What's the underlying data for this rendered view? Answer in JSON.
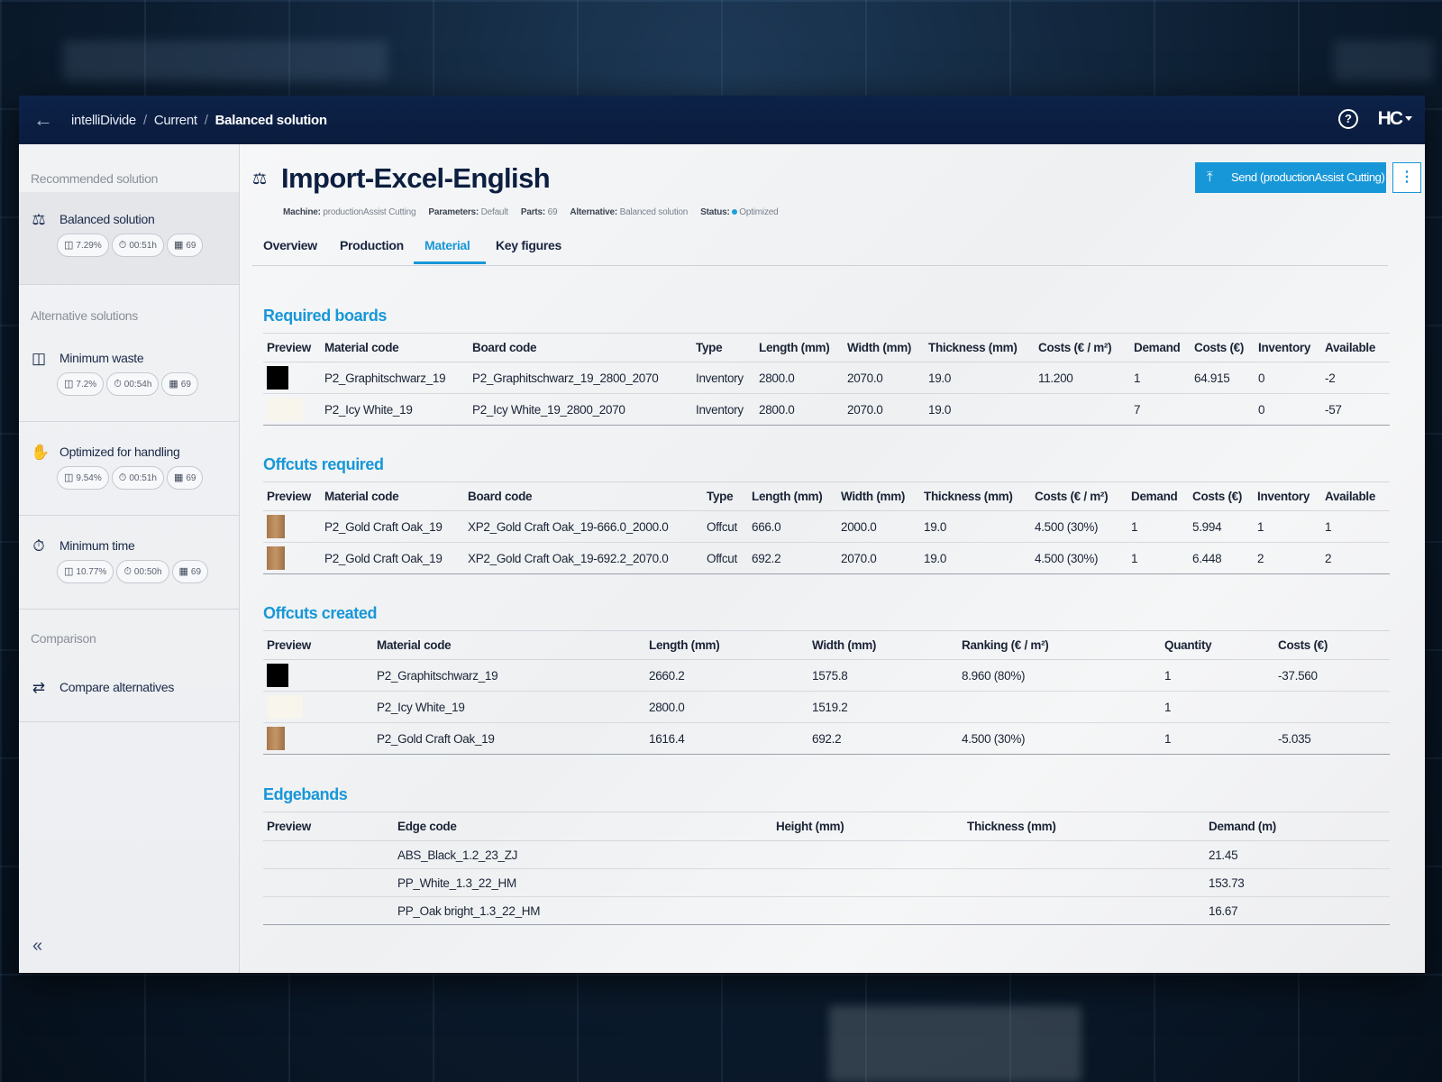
{
  "header": {
    "breadcrumb": [
      "intelliDivide",
      "Current",
      "Balanced solution"
    ],
    "logo_text": "HC"
  },
  "sidebar": {
    "recommended_title": "Recommended solution",
    "alternatives_title": "Alternative solutions",
    "comparison_title": "Comparison",
    "items": [
      {
        "label": "Balanced solution",
        "icon": "balance-scale-icon",
        "waste": "7.29%",
        "time": "00:51h",
        "parts": "69"
      },
      {
        "label": "Minimum waste",
        "icon": "waste-bin-icon",
        "waste": "7.2%",
        "time": "00:54h",
        "parts": "69"
      },
      {
        "label": "Optimized for handling",
        "icon": "hand-icon",
        "waste": "9.54%",
        "time": "00:51h",
        "parts": "69"
      },
      {
        "label": "Minimum time",
        "icon": "timer-icon",
        "waste": "10.77%",
        "time": "00:50h",
        "parts": "69"
      }
    ],
    "compare_label": "Compare alternatives"
  },
  "page": {
    "title": "Import-Excel-English",
    "meta": {
      "machine_label": "Machine:",
      "machine": "productionAssist Cutting",
      "parameters_label": "Parameters:",
      "parameters": "Default",
      "parts_label": "Parts:",
      "parts": "69",
      "alternative_label": "Alternative:",
      "alternative": "Balanced solution",
      "status_label": "Status:",
      "status": "Optimized"
    },
    "send_button": "Send (productionAssist Cutting)",
    "tabs": [
      "Overview",
      "Production",
      "Material",
      "Key figures"
    ],
    "active_tab": "Material"
  },
  "colors": {
    "accent": "#1897d8",
    "header": "#0d2248",
    "black_swatch": "#000000",
    "white_swatch": "#f7f5ec",
    "oak_swatch": "#a77a50"
  },
  "required_boards": {
    "title": "Required boards",
    "columns": [
      "Preview",
      "Material code",
      "Board code",
      "Type",
      "Length (mm)",
      "Width (mm)",
      "Thickness (mm)",
      "Costs (€ / m²)",
      "Demand",
      "Costs (€)",
      "Inventory",
      "Available"
    ],
    "rows": [
      [
        "P2_Graphitschwarz_19",
        "P2_Graphitschwarz_19_2800_2070",
        "Inventory",
        "2800.0",
        "2070.0",
        "19.0",
        "11.200",
        "1",
        "64.915",
        "0",
        "-2"
      ],
      [
        "P2_Icy White_19",
        "P2_Icy White_19_2800_2070",
        "Inventory",
        "2800.0",
        "2070.0",
        "19.0",
        "",
        "7",
        "",
        "0",
        "-57"
      ]
    ]
  },
  "offcuts_required": {
    "title": "Offcuts required",
    "columns": [
      "Preview",
      "Material code",
      "Board code",
      "Type",
      "Length (mm)",
      "Width (mm)",
      "Thickness (mm)",
      "Costs (€ / m²)",
      "Demand",
      "Costs (€)",
      "Inventory",
      "Available"
    ],
    "rows": [
      [
        "P2_Gold Craft Oak_19",
        "XP2_Gold Craft Oak_19-666.0_2000.0",
        "Offcut",
        "666.0",
        "2000.0",
        "19.0",
        "4.500 (30%)",
        "1",
        "5.994",
        "1",
        "1"
      ],
      [
        "P2_Gold Craft Oak_19",
        "XP2_Gold Craft Oak_19-692.2_2070.0",
        "Offcut",
        "692.2",
        "2070.0",
        "19.0",
        "4.500 (30%)",
        "1",
        "6.448",
        "2",
        "2"
      ]
    ]
  },
  "offcuts_created": {
    "title": "Offcuts created",
    "columns": [
      "Preview",
      "Material code",
      "Length (mm)",
      "Width (mm)",
      "Ranking (€ / m²)",
      "Quantity",
      "Costs (€)"
    ],
    "rows": [
      [
        "P2_Graphitschwarz_19",
        "2660.2",
        "1575.8",
        "8.960 (80%)",
        "1",
        "-37.560"
      ],
      [
        "P2_Icy White_19",
        "2800.0",
        "1519.2",
        "",
        "1",
        ""
      ],
      [
        "P2_Gold Craft Oak_19",
        "1616.4",
        "692.2",
        "4.500 (30%)",
        "1",
        "-5.035"
      ]
    ]
  },
  "edgebands": {
    "title": "Edgebands",
    "columns": [
      "Preview",
      "Edge code",
      "Height (mm)",
      "Thickness (mm)",
      "Demand (m)"
    ],
    "rows": [
      [
        "ABS_Black_1.2_23_ZJ",
        "",
        "",
        "21.45"
      ],
      [
        "PP_White_1.3_22_HM",
        "",
        "",
        "153.73"
      ],
      [
        "PP_Oak bright_1.3_22_HM",
        "",
        "",
        "16.67"
      ]
    ]
  }
}
